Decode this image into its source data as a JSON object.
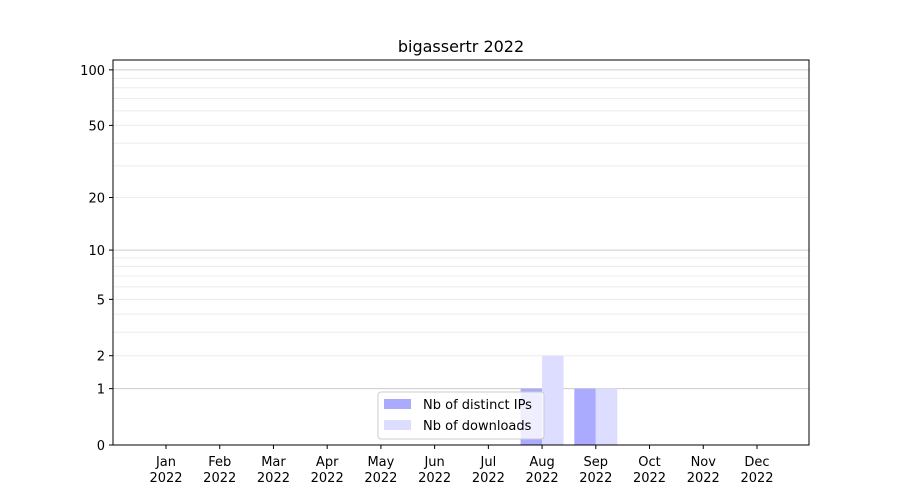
{
  "chart_data": {
    "type": "bar",
    "title": "bigassertr 2022",
    "xlabel": "",
    "ylabel": "",
    "yscale": "symlog (log10(1+y))",
    "ylim": [
      0,
      113
    ],
    "yticks": [
      0,
      1,
      2,
      5,
      10,
      20,
      50,
      100
    ],
    "grid": true,
    "legend_position": "lower-center",
    "categories": [
      "Jan\n2022",
      "Feb\n2022",
      "Mar\n2022",
      "Apr\n2022",
      "May\n2022",
      "Jun\n2022",
      "Jul\n2022",
      "Aug\n2022",
      "Sep\n2022",
      "Oct\n2022",
      "Nov\n2022",
      "Dec\n2022"
    ],
    "series": [
      {
        "name": "Nb of distinct IPs",
        "color": "#aaaaff",
        "values": [
          0,
          0,
          0,
          0,
          0,
          0,
          0,
          1,
          1,
          0,
          0,
          0
        ]
      },
      {
        "name": "Nb of downloads",
        "color": "#ddddff",
        "values": [
          0,
          0,
          0,
          0,
          0,
          0,
          0,
          2,
          1,
          0,
          0,
          0
        ]
      }
    ]
  }
}
